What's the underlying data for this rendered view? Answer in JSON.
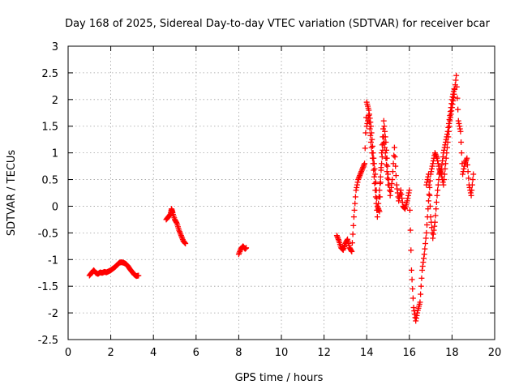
{
  "chart_data": {
    "type": "scatter",
    "title": "Day 168 of 2025, Sidereal Day-to-day VTEC variation (SDTVAR) for receiver bcar",
    "xlabel": "GPS time / hours",
    "ylabel": "SDTVAR / TECUs",
    "xlim": [
      0,
      20
    ],
    "ylim": [
      -2.5,
      3
    ],
    "xticks": [
      0,
      2,
      4,
      6,
      8,
      10,
      12,
      14,
      16,
      18,
      20
    ],
    "xtick_labels": [
      "0",
      "2",
      "4",
      "6",
      "8",
      "10",
      "12",
      "14",
      "16",
      "18",
      "20"
    ],
    "yticks": [
      -2.5,
      -2,
      -1.5,
      -1,
      -0.5,
      0,
      0.5,
      1,
      1.5,
      2,
      2.5,
      3
    ],
    "ytick_labels": [
      "-2.5",
      "-2",
      "-1.5",
      "-1",
      "-0.5",
      "0",
      "0.5",
      "1",
      "1.5",
      "2",
      "2.5",
      "3"
    ],
    "grid": true,
    "marker": "+",
    "color": "#ff0000",
    "series": [
      {
        "name": "SDTVAR",
        "segments": [
          [
            [
              1.0,
              -1.3
            ],
            [
              1.1,
              -1.25
            ],
            [
              1.2,
              -1.2
            ],
            [
              1.3,
              -1.25
            ],
            [
              1.4,
              -1.27
            ],
            [
              1.5,
              -1.24
            ],
            [
              1.6,
              -1.25
            ],
            [
              1.7,
              -1.23
            ],
            [
              1.8,
              -1.24
            ],
            [
              1.9,
              -1.22
            ],
            [
              2.0,
              -1.2
            ],
            [
              2.1,
              -1.17
            ],
            [
              2.2,
              -1.14
            ],
            [
              2.3,
              -1.1
            ],
            [
              2.4,
              -1.06
            ],
            [
              2.5,
              -1.05
            ],
            [
              2.6,
              -1.06
            ],
            [
              2.7,
              -1.08
            ],
            [
              2.8,
              -1.12
            ],
            [
              2.9,
              -1.18
            ],
            [
              3.0,
              -1.23
            ],
            [
              3.1,
              -1.28
            ],
            [
              3.2,
              -1.31
            ],
            [
              3.3,
              -1.3
            ]
          ],
          [
            [
              4.6,
              -0.25
            ],
            [
              4.7,
              -0.2
            ],
            [
              4.8,
              -0.15
            ],
            [
              4.85,
              -0.05
            ],
            [
              4.9,
              -0.12
            ],
            [
              5.0,
              -0.25
            ],
            [
              5.1,
              -0.32
            ],
            [
              5.2,
              -0.45
            ],
            [
              5.3,
              -0.55
            ],
            [
              5.4,
              -0.65
            ],
            [
              5.5,
              -0.7
            ]
          ],
          [
            [
              8.0,
              -0.9
            ],
            [
              8.1,
              -0.8
            ],
            [
              8.2,
              -0.75
            ],
            [
              8.3,
              -0.8
            ],
            [
              8.35,
              -0.78
            ]
          ],
          [
            [
              12.6,
              -0.55
            ],
            [
              12.7,
              -0.65
            ],
            [
              12.8,
              -0.78
            ],
            [
              12.9,
              -0.82
            ],
            [
              13.0,
              -0.7
            ],
            [
              13.1,
              -0.62
            ],
            [
              13.2,
              -0.78
            ],
            [
              13.3,
              -0.85
            ],
            [
              13.4,
              -0.2
            ],
            [
              13.5,
              0.3
            ],
            [
              13.6,
              0.5
            ],
            [
              13.7,
              0.6
            ],
            [
              13.8,
              0.7
            ],
            [
              13.9,
              0.8
            ],
            [
              14.0,
              1.95
            ],
            [
              14.1,
              1.8
            ],
            [
              14.2,
              1.5
            ],
            [
              14.3,
              1.0
            ],
            [
              14.4,
              0.6
            ],
            [
              14.5,
              0.0
            ],
            [
              14.6,
              -0.1
            ],
            [
              14.7,
              1.0
            ],
            [
              14.8,
              1.6
            ],
            [
              14.9,
              1.2
            ],
            [
              15.0,
              0.6
            ],
            [
              15.1,
              0.2
            ],
            [
              15.2,
              0.5
            ],
            [
              15.3,
              1.1
            ],
            [
              15.4,
              0.4
            ],
            [
              15.5,
              0.1
            ],
            [
              15.6,
              0.3
            ],
            [
              15.7,
              0.0
            ],
            [
              15.8,
              -0.05
            ],
            [
              15.9,
              0.1
            ],
            [
              16.0,
              0.3
            ],
            [
              16.1,
              -1.2
            ],
            [
              16.2,
              -1.9
            ],
            [
              16.3,
              -2.15
            ],
            [
              16.4,
              -1.95
            ],
            [
              16.5,
              -1.8
            ],
            [
              16.6,
              -1.2
            ],
            [
              16.7,
              -0.9
            ],
            [
              16.8,
              -0.5
            ],
            [
              16.9,
              0.1
            ],
            [
              17.0,
              0.6
            ],
            [
              17.1,
              0.8
            ],
            [
              17.2,
              1.0
            ],
            [
              17.3,
              0.9
            ],
            [
              17.4,
              0.7
            ],
            [
              17.5,
              0.6
            ],
            [
              17.6,
              0.4
            ],
            [
              17.7,
              0.8
            ],
            [
              17.8,
              1.2
            ],
            [
              17.9,
              1.6
            ],
            [
              18.0,
              1.85
            ],
            [
              18.1,
              2.1
            ],
            [
              18.2,
              2.45
            ],
            [
              18.3,
              1.6
            ],
            [
              18.4,
              1.4
            ],
            [
              18.5,
              0.6
            ],
            [
              18.6,
              0.8
            ],
            [
              18.7,
              0.9
            ],
            [
              18.8,
              0.4
            ],
            [
              18.9,
              0.2
            ],
            [
              19.0,
              0.6
            ]
          ],
          [
            [
              16.8,
              0.4
            ],
            [
              16.9,
              0.6
            ],
            [
              17.0,
              -0.2
            ],
            [
              17.1,
              -0.6
            ],
            [
              17.2,
              -0.3
            ],
            [
              17.3,
              0.2
            ],
            [
              17.4,
              0.6
            ],
            [
              17.5,
              0.7
            ],
            [
              17.6,
              1.0
            ],
            [
              17.7,
              1.2
            ],
            [
              17.8,
              1.4
            ],
            [
              17.9,
              1.7
            ],
            [
              18.0,
              2.0
            ],
            [
              18.1,
              2.2
            ]
          ],
          [
            [
              14.0,
              1.5
            ],
            [
              14.1,
              1.7
            ],
            [
              14.2,
              1.2
            ],
            [
              14.3,
              0.8
            ],
            [
              14.4,
              0.3
            ],
            [
              14.5,
              -0.2
            ],
            [
              14.6,
              0.3
            ],
            [
              14.7,
              0.8
            ],
            [
              14.8,
              1.3
            ],
            [
              14.9,
              0.9
            ],
            [
              15.0,
              0.4
            ]
          ]
        ]
      }
    ]
  }
}
